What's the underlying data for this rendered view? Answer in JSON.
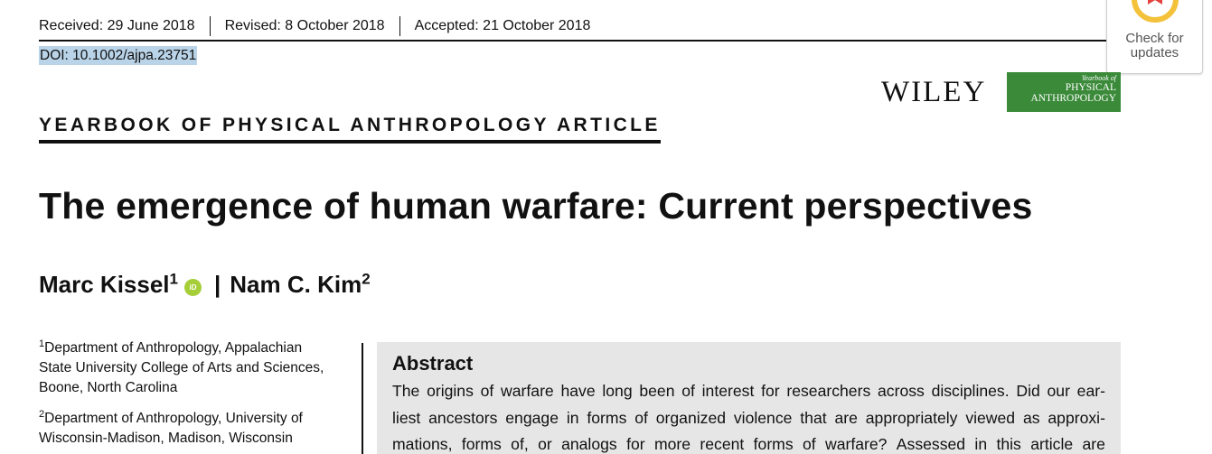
{
  "dates": {
    "received": "Received: 29 June 2018",
    "revised": "Revised: 8 October 2018",
    "accepted": "Accepted: 21 October 2018"
  },
  "doi": "DOI: 10.1002/ajpa.23751",
  "check_updates": {
    "label_line1": "Check for",
    "label_line2": "updates",
    "colors": {
      "ring": "#f3c13a",
      "bookmark": "#e2413c"
    }
  },
  "publisher": {
    "name": "WILEY",
    "journal_logo": {
      "line1": "Yearbook of",
      "line2": "PHYSICAL",
      "line3": "ANTHROPOLOGY",
      "color": "#3b8a3a"
    }
  },
  "article_type": "YEARBOOK OF PHYSICAL ANTHROPOLOGY ARTICLE",
  "title": "The emergence of human warfare: Current perspectives",
  "authors": {
    "author1_name": "Marc Kissel",
    "author1_aff": "1",
    "orcid_label": "iD",
    "separator": "|",
    "author2_name": "Nam C. Kim",
    "author2_aff": "2"
  },
  "affiliations": [
    {
      "num": "1",
      "lines": [
        "Department of Anthropology, Appalachian",
        "State University College of Arts and Sciences,",
        "Boone, North Carolina"
      ]
    },
    {
      "num": "2",
      "lines": [
        "Department of Anthropology, University of",
        "Wisconsin-Madison, Madison, Wisconsin"
      ]
    }
  ],
  "abstract": {
    "heading": "Abstract",
    "lines": [
      "The origins of warfare have long been of interest for researchers across disciplines. Did our ear-",
      "liest ancestors engage in forms of organized violence that are appropriately viewed as approxi-",
      "mations, forms of, or analogs for more recent forms of warfare? Assessed in this article are"
    ]
  }
}
